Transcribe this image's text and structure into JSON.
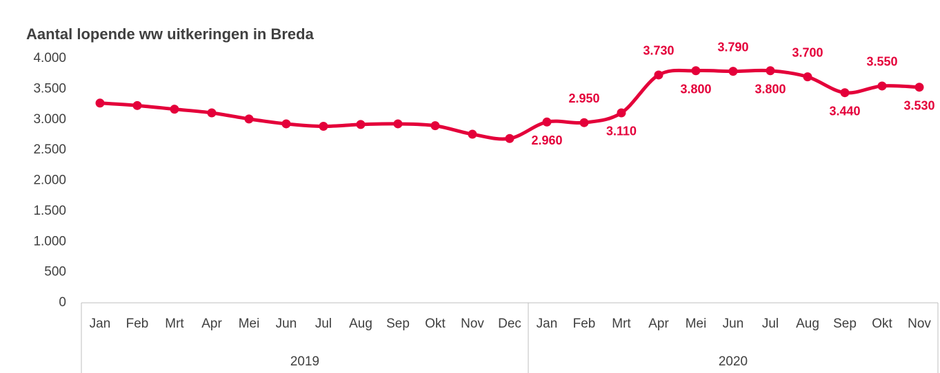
{
  "chart_data": {
    "type": "line",
    "title": "Aantal lopende ww uitkeringen in Breda",
    "groups": [
      {
        "label": "2019",
        "categories": [
          "Jan",
          "Feb",
          "Mrt",
          "Apr",
          "Mei",
          "Jun",
          "Jul",
          "Aug",
          "Sep",
          "Okt",
          "Nov",
          "Dec"
        ]
      },
      {
        "label": "2020",
        "categories": [
          "Jan",
          "Feb",
          "Mrt",
          "Apr",
          "Mei",
          "Jun",
          "Jul",
          "Aug",
          "Sep",
          "Okt",
          "Nov"
        ]
      }
    ],
    "series": [
      {
        "color": "#e4003a",
        "values": [
          3270,
          3230,
          3170,
          3110,
          3010,
          2930,
          2890,
          2920,
          2930,
          2900,
          2760,
          2690,
          2960,
          2950,
          3110,
          3730,
          3800,
          3790,
          3800,
          3700,
          3440,
          3550,
          3530
        ],
        "value_labels": [
          null,
          null,
          null,
          null,
          null,
          null,
          null,
          null,
          null,
          null,
          null,
          null,
          "2.960",
          "2.950",
          "3.110",
          "3.730",
          "3.800",
          "3.790",
          "3.800",
          "3.700",
          "3.440",
          "3.550",
          "3.530"
        ]
      }
    ],
    "ylim": [
      0,
      4000
    ],
    "yticks": [
      0,
      500,
      {
        "value": 1000,
        "label": "1.000"
      },
      {
        "value": 1500,
        "label": "1.500"
      },
      {
        "value": 2000,
        "label": "2.000"
      },
      {
        "value": 2500,
        "label": "2.500"
      },
      {
        "value": 3000,
        "label": "3.000"
      },
      {
        "value": 3500,
        "label": "3.500"
      },
      {
        "value": 4000,
        "label": "4.000"
      }
    ],
    "grid": false
  }
}
